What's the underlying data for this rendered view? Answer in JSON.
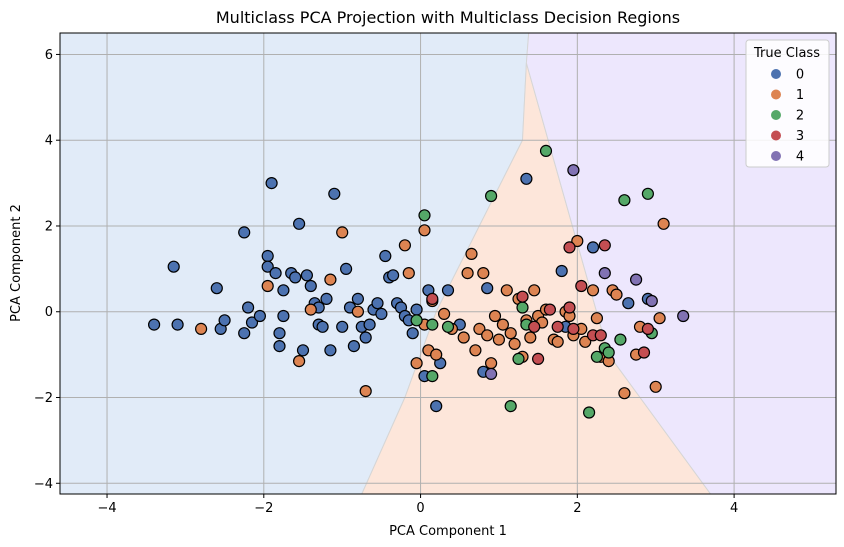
{
  "chart_data": {
    "type": "scatter",
    "title": "Multiclass PCA Projection with Multiclass Decision Regions",
    "xlabel": "PCA Component 1",
    "ylabel": "PCA Component 2",
    "xlim": [
      -4.6,
      5.3
    ],
    "ylim": [
      -4.25,
      6.5
    ],
    "xticks": [
      -4,
      -2,
      0,
      2,
      4
    ],
    "yticks": [
      -4,
      -2,
      0,
      2,
      4,
      6
    ],
    "xtick_labels": [
      "−4",
      "−2",
      "0",
      "2",
      "4"
    ],
    "ytick_labels": [
      "−4",
      "−2",
      "0",
      "2",
      "4",
      "6"
    ],
    "grid": true,
    "legend_position": "top-right",
    "legend_title": "True Class",
    "regions": [
      {
        "class": "0",
        "color": "#e1ebf8",
        "polygon": [
          [
            -4.6,
            -4.25
          ],
          [
            -0.75,
            -4.25
          ],
          [
            -0.2,
            -2
          ],
          [
            0.2,
            0
          ],
          [
            1.3,
            4
          ],
          [
            1.35,
            5.8
          ],
          [
            1.38,
            6.5
          ],
          [
            -4.6,
            6.5
          ]
        ]
      },
      {
        "class": "1",
        "color": "#fde6da",
        "polygon": [
          [
            -0.75,
            -4.25
          ],
          [
            3.7,
            -4.25
          ],
          [
            2.4,
            -1
          ],
          [
            1.35,
            5.8
          ],
          [
            1.3,
            4
          ],
          [
            0.2,
            0
          ],
          [
            -0.2,
            -2
          ]
        ]
      },
      {
        "class": "4",
        "color": "#ede7fd",
        "polygon": [
          [
            3.7,
            -4.25
          ],
          [
            5.3,
            -4.25
          ],
          [
            5.3,
            6.5
          ],
          [
            1.38,
            6.5
          ],
          [
            1.35,
            5.8
          ],
          [
            2.4,
            -1
          ]
        ]
      }
    ],
    "series": [
      {
        "name": "0",
        "color": "#4c72b0",
        "points": [
          [
            -3.4,
            -0.3
          ],
          [
            -3.1,
            -0.3
          ],
          [
            -3.15,
            1.05
          ],
          [
            -2.6,
            0.55
          ],
          [
            -2.55,
            -0.4
          ],
          [
            -2.5,
            -0.2
          ],
          [
            -2.25,
            1.85
          ],
          [
            -2.25,
            -0.5
          ],
          [
            -2.2,
            0.1
          ],
          [
            -2.15,
            -0.25
          ],
          [
            -2.05,
            -0.1
          ],
          [
            -1.95,
            1.3
          ],
          [
            -1.95,
            1.05
          ],
          [
            -1.9,
            3.0
          ],
          [
            -1.85,
            0.9
          ],
          [
            -1.8,
            -0.5
          ],
          [
            -1.8,
            -0.8
          ],
          [
            -1.75,
            0.5
          ],
          [
            -1.75,
            -0.1
          ],
          [
            -1.65,
            0.9
          ],
          [
            -1.6,
            0.8
          ],
          [
            -1.55,
            2.05
          ],
          [
            -1.5,
            -0.9
          ],
          [
            -1.45,
            0.85
          ],
          [
            -1.4,
            0.6
          ],
          [
            -1.35,
            0.2
          ],
          [
            -1.3,
            0.1
          ],
          [
            -1.3,
            -0.3
          ],
          [
            -1.25,
            -0.35
          ],
          [
            -1.2,
            0.3
          ],
          [
            -1.15,
            -0.9
          ],
          [
            -1.1,
            2.75
          ],
          [
            -1.0,
            -0.35
          ],
          [
            -0.95,
            1.0
          ],
          [
            -0.9,
            0.1
          ],
          [
            -0.85,
            -0.8
          ],
          [
            -0.8,
            0.3
          ],
          [
            -0.75,
            -0.35
          ],
          [
            -0.7,
            -0.6
          ],
          [
            -0.65,
            -0.3
          ],
          [
            -0.6,
            0.05
          ],
          [
            -0.55,
            0.2
          ],
          [
            -0.5,
            -0.05
          ],
          [
            -0.45,
            1.3
          ],
          [
            -0.4,
            0.8
          ],
          [
            -0.35,
            0.85
          ],
          [
            -0.3,
            0.2
          ],
          [
            -0.25,
            0.1
          ],
          [
            -0.2,
            -0.1
          ],
          [
            -0.15,
            -0.2
          ],
          [
            -0.1,
            -0.5
          ],
          [
            -0.05,
            0.05
          ],
          [
            0.05,
            -1.5
          ],
          [
            0.1,
            0.5
          ],
          [
            0.2,
            -2.2
          ],
          [
            0.25,
            -1.2
          ],
          [
            0.35,
            0.5
          ],
          [
            0.5,
            -0.3
          ],
          [
            0.8,
            -1.4
          ],
          [
            0.85,
            0.55
          ],
          [
            1.35,
            3.1
          ],
          [
            1.8,
            0.95
          ],
          [
            1.85,
            -0.35
          ],
          [
            2.2,
            1.5
          ],
          [
            2.65,
            0.2
          ],
          [
            2.9,
            0.3
          ]
        ]
      },
      {
        "name": "1",
        "color": "#dd8452",
        "points": [
          [
            -2.8,
            -0.4
          ],
          [
            -1.95,
            0.6
          ],
          [
            -1.55,
            -1.15
          ],
          [
            -1.4,
            0.05
          ],
          [
            -1.15,
            0.75
          ],
          [
            -1.0,
            1.85
          ],
          [
            -0.8,
            0.0
          ],
          [
            -0.7,
            -1.85
          ],
          [
            -0.2,
            1.55
          ],
          [
            -0.15,
            0.9
          ],
          [
            -0.05,
            -1.2
          ],
          [
            0.05,
            -0.3
          ],
          [
            0.15,
            0.25
          ],
          [
            0.05,
            1.9
          ],
          [
            0.1,
            -0.9
          ],
          [
            0.2,
            -1.0
          ],
          [
            0.3,
            -0.05
          ],
          [
            0.4,
            -0.4
          ],
          [
            0.55,
            -0.6
          ],
          [
            0.6,
            0.9
          ],
          [
            0.65,
            1.35
          ],
          [
            0.7,
            -0.9
          ],
          [
            0.75,
            -0.4
          ],
          [
            0.8,
            0.9
          ],
          [
            0.85,
            -0.55
          ],
          [
            0.9,
            -1.2
          ],
          [
            0.95,
            -0.1
          ],
          [
            1.0,
            -0.65
          ],
          [
            1.05,
            -0.3
          ],
          [
            1.1,
            0.5
          ],
          [
            1.15,
            -0.5
          ],
          [
            1.2,
            -0.75
          ],
          [
            1.25,
            0.3
          ],
          [
            1.3,
            -1.05
          ],
          [
            1.35,
            -0.2
          ],
          [
            1.4,
            -0.6
          ],
          [
            1.45,
            0.5
          ],
          [
            1.5,
            -0.1
          ],
          [
            1.55,
            -0.25
          ],
          [
            1.6,
            0.05
          ],
          [
            1.7,
            -0.65
          ],
          [
            1.75,
            -0.7
          ],
          [
            1.85,
            0.0
          ],
          [
            1.9,
            -0.1
          ],
          [
            1.95,
            -0.55
          ],
          [
            2.0,
            1.65
          ],
          [
            2.05,
            -0.4
          ],
          [
            2.1,
            -0.7
          ],
          [
            2.2,
            0.5
          ],
          [
            2.25,
            -0.15
          ],
          [
            2.3,
            -1.05
          ],
          [
            2.4,
            -1.15
          ],
          [
            2.45,
            0.5
          ],
          [
            2.5,
            0.4
          ],
          [
            2.6,
            -1.9
          ],
          [
            2.75,
            -1.0
          ],
          [
            2.8,
            -0.35
          ],
          [
            3.0,
            -1.75
          ],
          [
            3.05,
            -0.15
          ],
          [
            3.1,
            2.05
          ]
        ]
      },
      {
        "name": "2",
        "color": "#55a868",
        "points": [
          [
            -0.05,
            -0.2
          ],
          [
            0.05,
            2.25
          ],
          [
            0.15,
            -0.3
          ],
          [
            0.15,
            -1.5
          ],
          [
            0.35,
            -0.35
          ],
          [
            0.9,
            2.7
          ],
          [
            1.15,
            -2.2
          ],
          [
            1.25,
            -1.1
          ],
          [
            1.3,
            0.1
          ],
          [
            1.35,
            -0.3
          ],
          [
            1.6,
            3.75
          ],
          [
            2.15,
            -2.35
          ],
          [
            2.25,
            -1.05
          ],
          [
            2.35,
            -0.85
          ],
          [
            2.4,
            -0.95
          ],
          [
            2.55,
            -0.65
          ],
          [
            2.6,
            2.6
          ],
          [
            2.9,
            2.75
          ],
          [
            2.95,
            -0.5
          ]
        ]
      },
      {
        "name": "3",
        "color": "#c44e52",
        "points": [
          [
            0.15,
            0.3
          ],
          [
            1.3,
            0.35
          ],
          [
            1.45,
            -0.35
          ],
          [
            1.5,
            -1.1
          ],
          [
            1.65,
            0.05
          ],
          [
            1.75,
            -0.35
          ],
          [
            1.9,
            1.5
          ],
          [
            1.9,
            0.1
          ],
          [
            1.95,
            -0.4
          ],
          [
            2.05,
            0.6
          ],
          [
            2.2,
            -0.55
          ],
          [
            2.3,
            -0.55
          ],
          [
            2.35,
            1.55
          ],
          [
            2.85,
            -0.95
          ],
          [
            2.9,
            -0.4
          ]
        ]
      },
      {
        "name": "4",
        "color": "#8172b3",
        "points": [
          [
            0.9,
            -1.45
          ],
          [
            1.95,
            3.3
          ],
          [
            2.35,
            0.9
          ],
          [
            2.75,
            0.75
          ],
          [
            2.95,
            0.25
          ],
          [
            3.35,
            -0.1
          ]
        ]
      }
    ]
  }
}
